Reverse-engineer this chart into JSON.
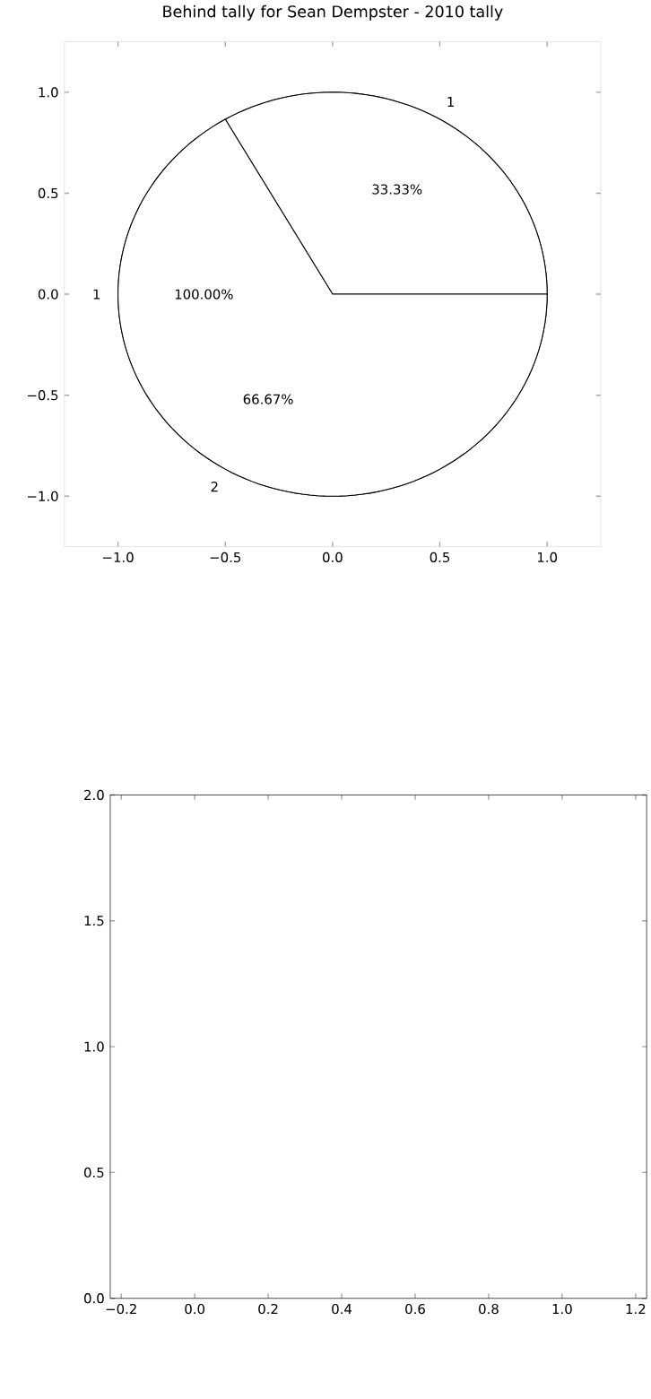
{
  "chart_data": [
    {
      "type": "scatter",
      "title": "Behind tally for Sean Dempster - 2010 tally",
      "xlim": [
        -1.25,
        1.25
      ],
      "ylim": [
        -1.25,
        1.25
      ],
      "xticks": [
        {
          "value": -1.0,
          "label": "−1.0"
        },
        {
          "value": -0.5,
          "label": "−0.5"
        },
        {
          "value": 0,
          "label": "0.0"
        },
        {
          "value": 0.5,
          "label": "0.5"
        },
        {
          "value": 1,
          "label": "1.0"
        }
      ],
      "yticks": [
        {
          "value": -1.0,
          "label": "−1.0"
        },
        {
          "value": -0.5,
          "label": "−0.5"
        },
        {
          "value": 0,
          "label": "0.0"
        },
        {
          "value": 0.5,
          "label": "0.5"
        },
        {
          "value": 1,
          "label": "1.0"
        }
      ]
    },
    {
      "type": "pie",
      "categories": [
        "1"
      ],
      "values": [
        100
      ],
      "value_labels": [
        "100.00%"
      ],
      "colors": [
        "#ffffff"
      ]
    },
    {
      "type": "pie",
      "categories": [
        "1",
        "2"
      ],
      "values": [
        33.33,
        66.67
      ],
      "value_labels": [
        "33.33%",
        "66.67%"
      ],
      "colors": [
        "#ffffff",
        "#ffffff"
      ]
    },
    {
      "type": "scatter",
      "xlim": [
        -0.23,
        1.23
      ],
      "ylim": [
        0,
        2
      ],
      "xticks": [
        {
          "value": -0.2,
          "label": "−0.2"
        },
        {
          "value": 0,
          "label": "0.0"
        },
        {
          "value": 0.2,
          "label": "0.2"
        },
        {
          "value": 0.4,
          "label": "0.4"
        },
        {
          "value": 0.6,
          "label": "0.6"
        },
        {
          "value": 0.8,
          "label": "0.8"
        },
        {
          "value": 1,
          "label": "1.0"
        },
        {
          "value": 1.2,
          "label": "1.2"
        }
      ],
      "yticks": [
        {
          "value": 0,
          "label": "0.0"
        },
        {
          "value": 0.5,
          "label": "0.5"
        },
        {
          "value": 1,
          "label": "1.0"
        },
        {
          "value": 1.5,
          "label": "1.5"
        },
        {
          "value": 2,
          "label": "2.0"
        }
      ]
    }
  ]
}
